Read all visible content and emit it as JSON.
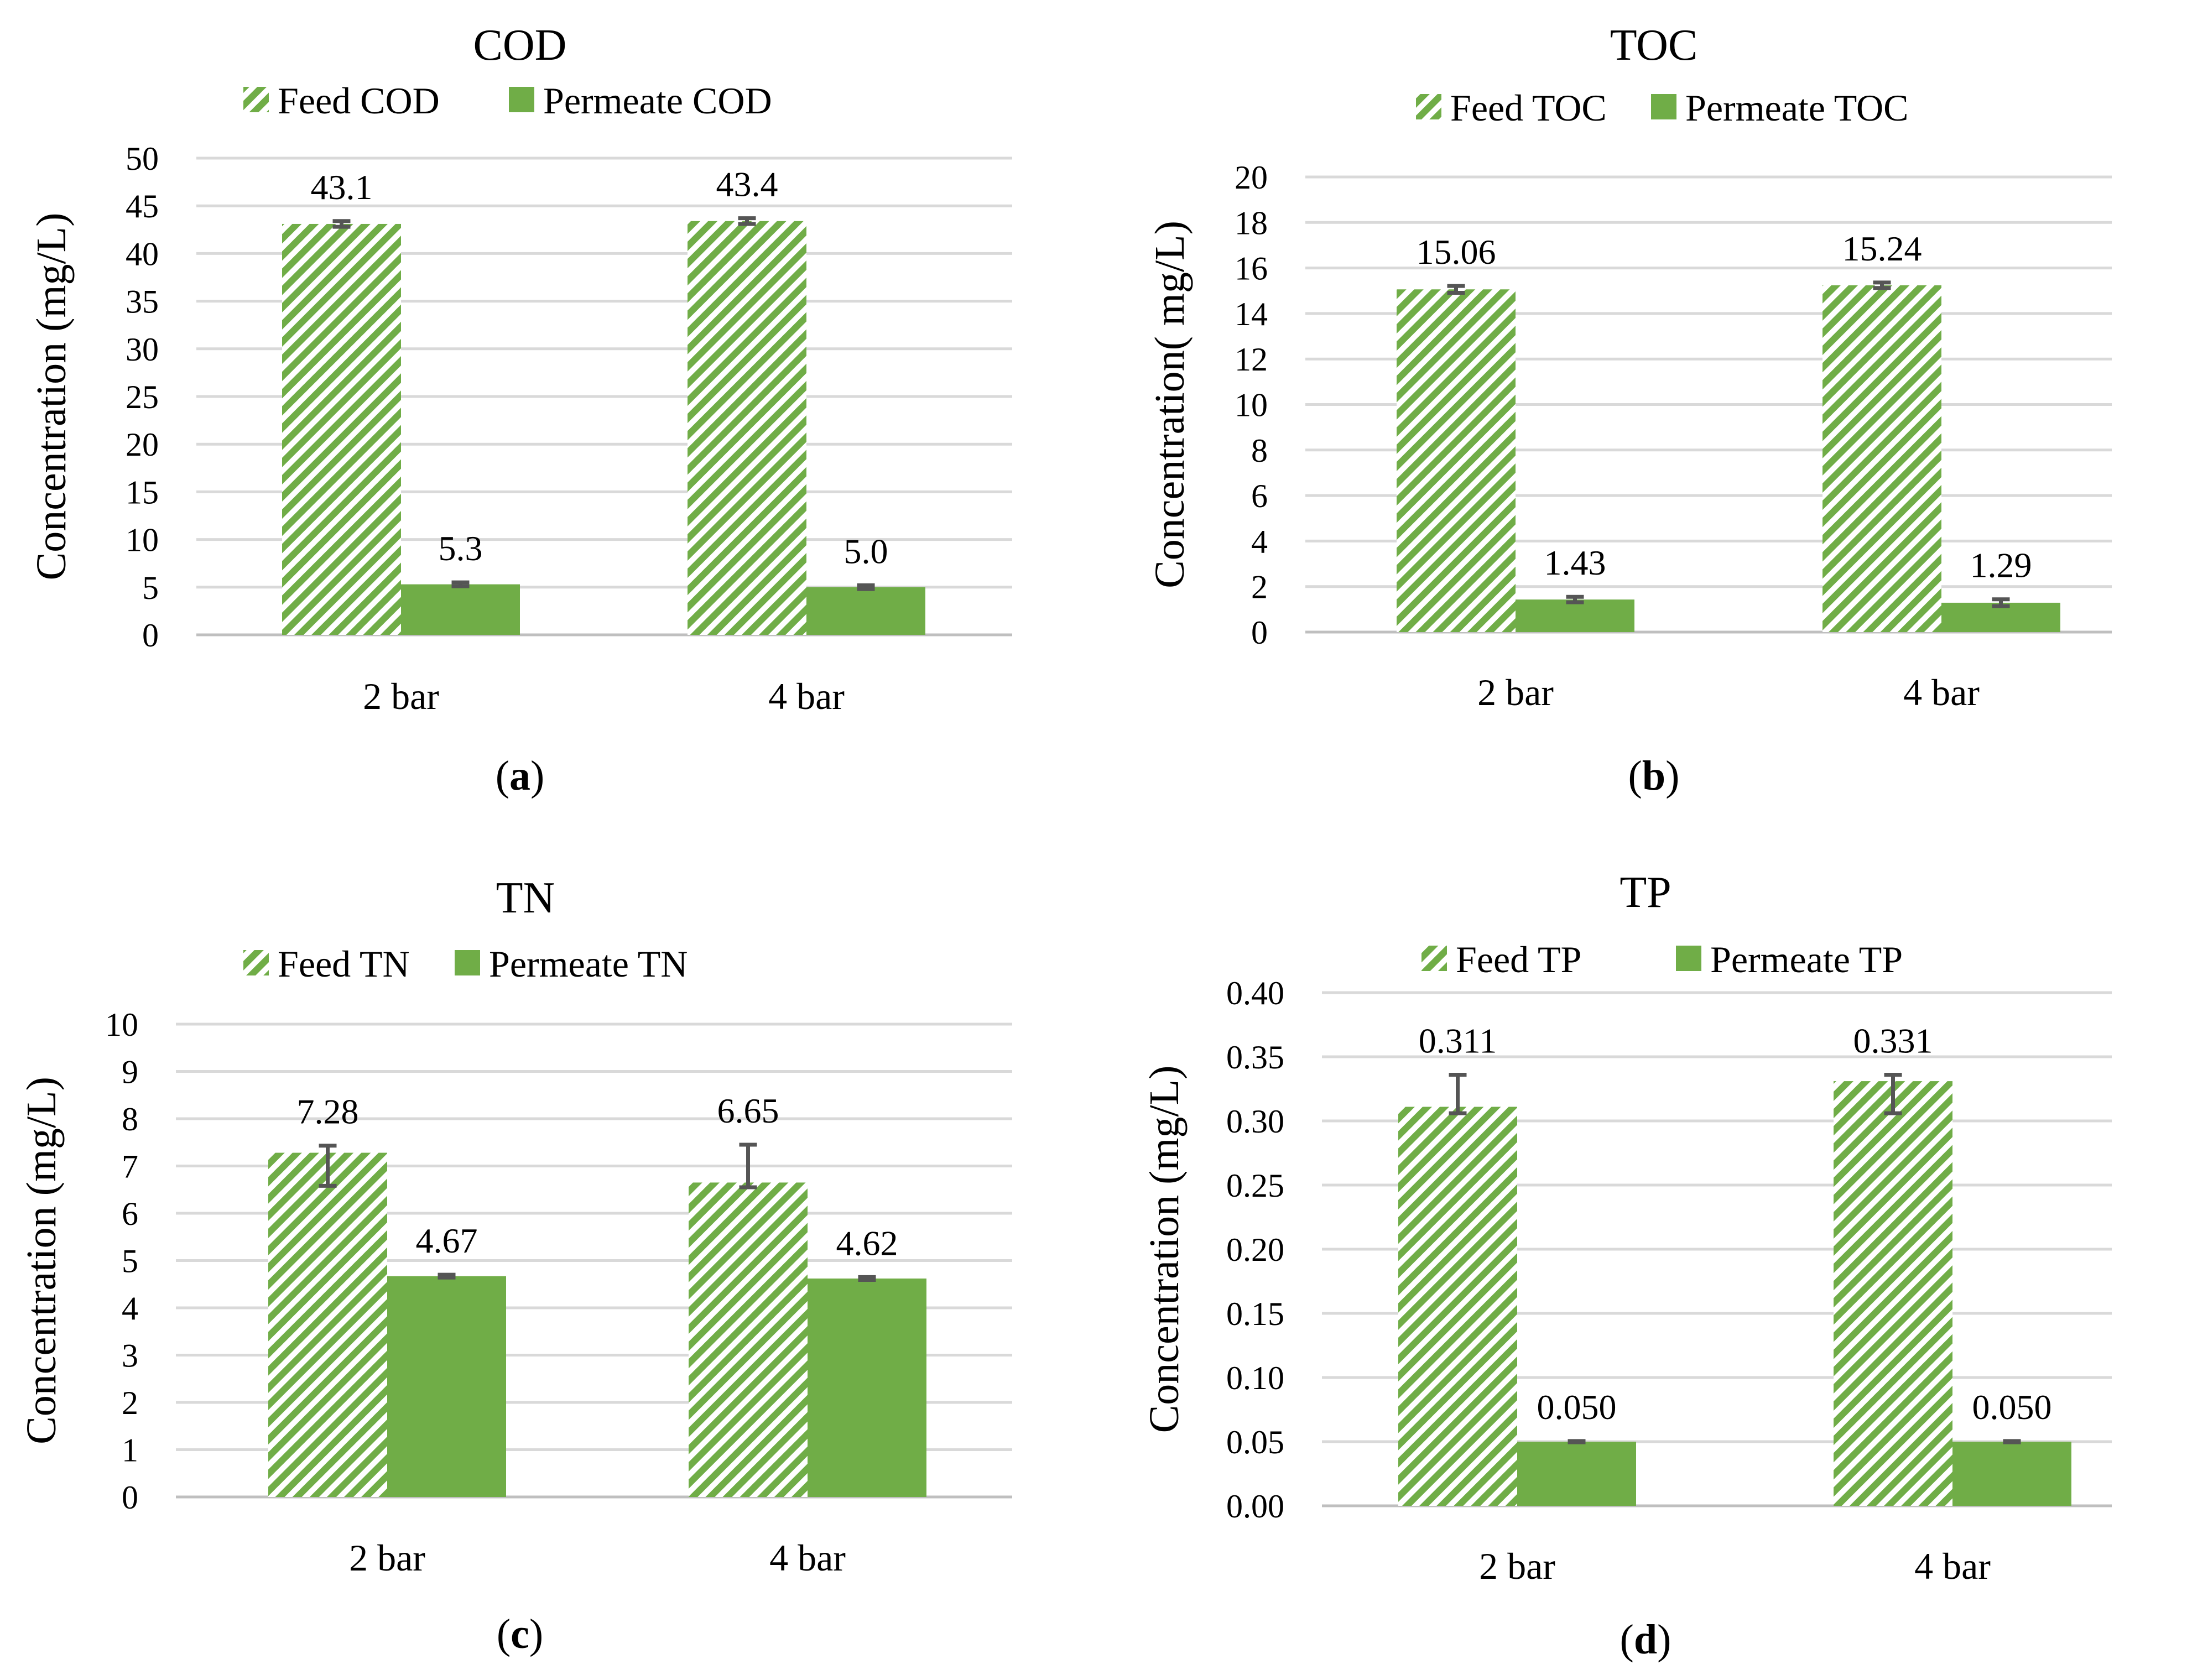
{
  "colors": {
    "feed": "#70ad47",
    "permeate": "#70ad47",
    "hatch_bg": "#ffffff"
  },
  "chart_data": [
    {
      "type": "bar",
      "title": "COD",
      "caption_letter": "a",
      "ylabel": "Concentration (mg/L)",
      "xlabel": "",
      "categories": [
        "2 bar",
        "4 bar"
      ],
      "ylim": [
        0,
        50
      ],
      "yticks": [
        "0",
        "5",
        "10",
        "15",
        "20",
        "25",
        "30",
        "35",
        "40",
        "45",
        "50"
      ],
      "series": [
        {
          "name": "Feed COD",
          "pattern": "hatched",
          "values": [
            43.1,
            43.4
          ],
          "labels": [
            "43.1",
            "43.4"
          ],
          "err_low": [
            0.3,
            0.3
          ],
          "err_high": [
            0.3,
            0.3
          ]
        },
        {
          "name": "Permeate COD",
          "pattern": "solid",
          "values": [
            5.3,
            5.0
          ],
          "labels": [
            "5.3",
            "5.0"
          ],
          "err_low": [
            0.2,
            0.2
          ],
          "err_high": [
            0.2,
            0.2
          ]
        }
      ]
    },
    {
      "type": "bar",
      "title": "TOC",
      "caption_letter": "b",
      "ylabel": "Concentration( mg/L)",
      "xlabel": "",
      "categories": [
        "2 bar",
        "4 bar"
      ],
      "ylim": [
        0,
        20
      ],
      "yticks": [
        "0",
        "2",
        "4",
        "6",
        "8",
        "10",
        "12",
        "14",
        "16",
        "18",
        "20"
      ],
      "series": [
        {
          "name": "Feed TOC",
          "pattern": "hatched",
          "values": [
            15.06,
            15.24
          ],
          "labels": [
            "15.06",
            "15.24"
          ],
          "err_low": [
            0.15,
            0.12
          ],
          "err_high": [
            0.15,
            0.12
          ]
        },
        {
          "name": "Permeate TOC",
          "pattern": "solid",
          "values": [
            1.43,
            1.29
          ],
          "labels": [
            "1.43",
            "1.29"
          ],
          "err_low": [
            0.12,
            0.15
          ],
          "err_high": [
            0.12,
            0.15
          ]
        }
      ]
    },
    {
      "type": "bar",
      "title": "TN",
      "caption_letter": "c",
      "ylabel": "Concentration (mg/L)",
      "xlabel": "",
      "categories": [
        "2 bar",
        "4 bar"
      ],
      "ylim": [
        0,
        10
      ],
      "yticks": [
        "0",
        "1",
        "2",
        "3",
        "4",
        "5",
        "6",
        "7",
        "8",
        "9",
        "10"
      ],
      "series": [
        {
          "name": "Feed TN",
          "pattern": "hatched",
          "values": [
            7.28,
            6.65
          ],
          "labels": [
            "7.28",
            "6.65"
          ],
          "err_low": [
            0.7,
            0.1
          ],
          "err_high": [
            0.15,
            0.8
          ]
        },
        {
          "name": "Permeate TN",
          "pattern": "solid",
          "values": [
            4.67,
            4.62
          ],
          "labels": [
            "4.67",
            "4.62"
          ],
          "err_low": [
            0.03,
            0.03
          ],
          "err_high": [
            0.03,
            0.03
          ]
        }
      ]
    },
    {
      "type": "bar",
      "title": "TP",
      "caption_letter": "d",
      "ylabel": "Concentration (mg/L)",
      "xlabel": "",
      "categories": [
        "2 bar",
        "4 bar"
      ],
      "ylim": [
        0,
        0.4
      ],
      "yticks": [
        "0.00",
        "0.05",
        "0.10",
        "0.15",
        "0.20",
        "0.25",
        "0.30",
        "0.35",
        "0.40"
      ],
      "series": [
        {
          "name": "Feed TP",
          "pattern": "hatched",
          "values": [
            0.311,
            0.331
          ],
          "labels": [
            "0.311",
            "0.331"
          ],
          "err_low": [
            0.005,
            0.025
          ],
          "err_high": [
            0.025,
            0.005
          ]
        },
        {
          "name": "Permeate TP",
          "pattern": "solid",
          "values": [
            0.05,
            0.05
          ],
          "labels": [
            "0.050",
            "0.050"
          ],
          "err_low": [
            0.0005,
            0.0005
          ],
          "err_high": [
            0.0005,
            0.0005
          ]
        }
      ]
    }
  ]
}
